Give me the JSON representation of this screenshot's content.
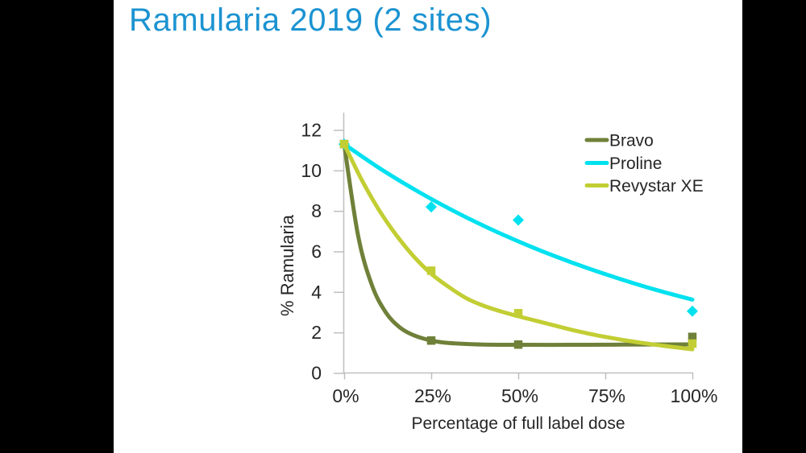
{
  "slide": {
    "title": "Ramularia 2019 (2 sites)"
  },
  "colors": {
    "title": "#1b93d1",
    "axis": "#bfbfbf",
    "text": "#262626",
    "letterbox": "#000000",
    "bravo": "#6f8139",
    "proline": "#00e1f0",
    "revystar": "#c2ce33"
  },
  "chart_data": {
    "type": "scatter",
    "xlabel": "Percentage of full label dose",
    "ylabel": "% Ramularia",
    "xlim": [
      0,
      100
    ],
    "ylim": [
      0,
      12
    ],
    "x_tick_values": [
      0,
      25,
      50,
      75,
      100
    ],
    "x_tick_labels": [
      "0%",
      "25%",
      "50%",
      "75%",
      "100%"
    ],
    "y_tick_values": [
      0,
      2,
      4,
      6,
      8,
      10,
      12
    ],
    "grid": false,
    "legend_position": "top-right",
    "series": [
      {
        "name": "Bravo",
        "color_key": "bravo",
        "marker": "square",
        "points": [
          [
            0,
            11.3
          ],
          [
            25,
            1.6
          ],
          [
            50,
            1.4
          ],
          [
            100,
            1.78
          ]
        ],
        "trend": [
          [
            0,
            11.3
          ],
          [
            4,
            6.78
          ],
          [
            8,
            4.32
          ],
          [
            12,
            2.98
          ],
          [
            16,
            2.25
          ],
          [
            20,
            1.86
          ],
          [
            25,
            1.6
          ],
          [
            30,
            1.48
          ],
          [
            40,
            1.4
          ],
          [
            50,
            1.39
          ],
          [
            65,
            1.39
          ],
          [
            80,
            1.4
          ],
          [
            100,
            1.41
          ]
        ]
      },
      {
        "name": "Proline",
        "color_key": "proline",
        "marker": "diamond",
        "points": [
          [
            0,
            11.3
          ],
          [
            25,
            8.2
          ],
          [
            50,
            7.55
          ],
          [
            100,
            3.05
          ]
        ],
        "trend": [
          [
            0,
            11.3
          ],
          [
            10,
            10.13
          ],
          [
            20,
            9.08
          ],
          [
            30,
            8.13
          ],
          [
            40,
            7.27
          ],
          [
            50,
            6.5
          ],
          [
            60,
            5.8
          ],
          [
            70,
            5.17
          ],
          [
            80,
            4.6
          ],
          [
            90,
            4.08
          ],
          [
            100,
            3.62
          ]
        ]
      },
      {
        "name": "Revystar XE",
        "color_key": "revystar",
        "marker": "square",
        "points": [
          [
            0,
            11.3
          ],
          [
            25,
            5.05
          ],
          [
            50,
            2.95
          ],
          [
            100,
            1.45
          ]
        ],
        "trend": [
          [
            0,
            11.3
          ],
          [
            5,
            9.55
          ],
          [
            10,
            8.05
          ],
          [
            15,
            6.8
          ],
          [
            20,
            5.75
          ],
          [
            25,
            4.9
          ],
          [
            30,
            4.25
          ],
          [
            35,
            3.7
          ],
          [
            40,
            3.32
          ],
          [
            45,
            3.04
          ],
          [
            50,
            2.8
          ],
          [
            55,
            2.58
          ],
          [
            60,
            2.36
          ],
          [
            65,
            2.14
          ],
          [
            70,
            1.95
          ],
          [
            75,
            1.78
          ],
          [
            80,
            1.63
          ],
          [
            85,
            1.5
          ],
          [
            90,
            1.38
          ],
          [
            95,
            1.27
          ],
          [
            100,
            1.17
          ]
        ]
      }
    ]
  }
}
